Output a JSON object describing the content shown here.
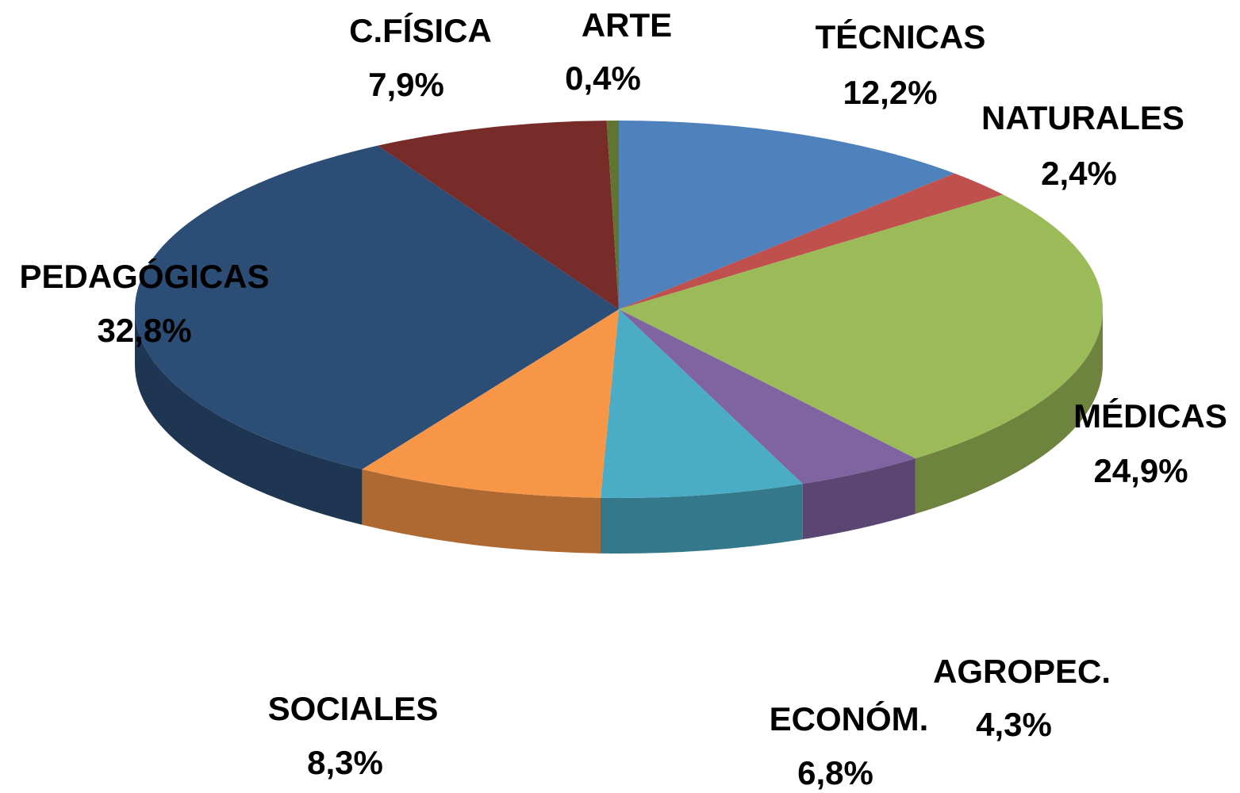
{
  "chart_data": {
    "type": "pie3d",
    "categories": [
      "TÉCNICAS",
      "NATURALES",
      "MÉDICAS",
      "AGROPEC.",
      "ECONÓM.",
      "SOCIALES",
      "PEDAGÓGICAS",
      "C.FÍSICA",
      "ARTE"
    ],
    "values": [
      12.2,
      2.4,
      24.9,
      4.3,
      6.8,
      8.3,
      32.8,
      7.9,
      0.4
    ],
    "value_labels": [
      "12,2%",
      "2,4%",
      "24,9%",
      "4,3%",
      "6,8%",
      "8,3%",
      "32,8%",
      "7,9%",
      "0,4%"
    ],
    "colors": [
      "#4f81bd",
      "#c0504d",
      "#9bbb59",
      "#8064a2",
      "#4bacc6",
      "#f79646",
      "#2c4d75",
      "#772c2a",
      "#5f7530"
    ]
  }
}
